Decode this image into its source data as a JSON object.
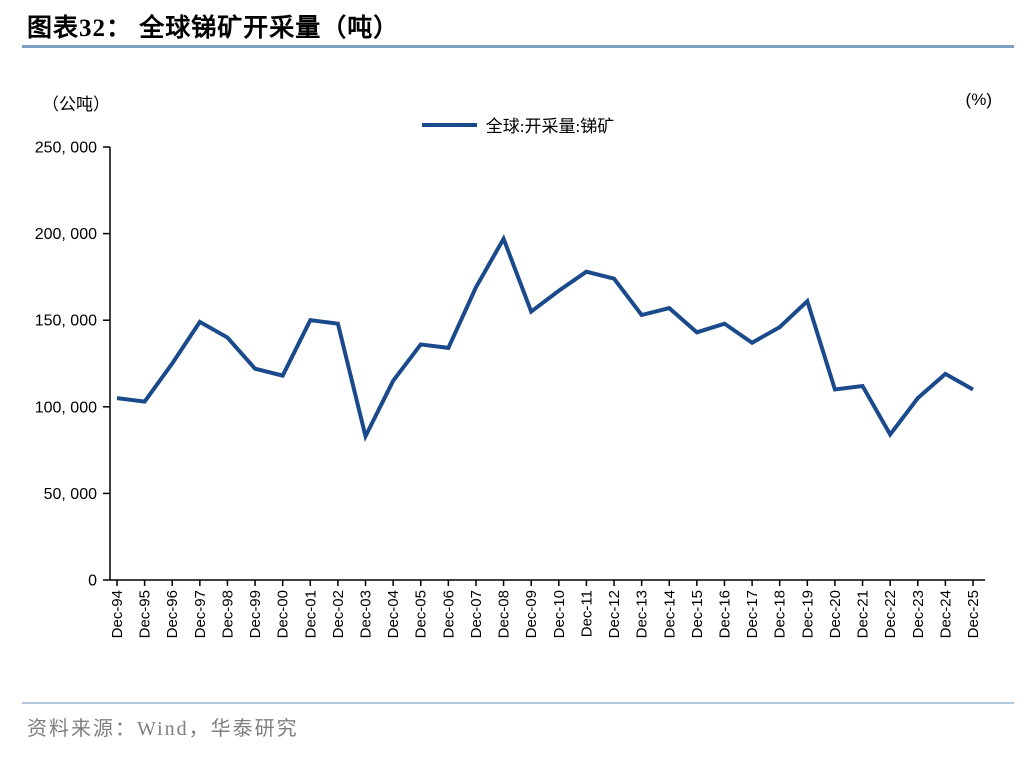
{
  "header": {
    "title": "图表32：  全球锑矿开采量（吨）"
  },
  "footer": {
    "source": "资料来源：Wind，华泰研究"
  },
  "colors": {
    "line": "#1B4A8C",
    "title_rule": "#7CA0C4",
    "footer_rule": "#AFC6DC",
    "axis": "#000000",
    "footer_text": "#7F7F7F"
  },
  "chart_data": {
    "type": "line",
    "title": "全球锑矿开采量（吨）",
    "unit_left": "（公吨）",
    "unit_right": "(%)",
    "legend_position": "top-center",
    "grid": false,
    "categories": [
      "Dec-94",
      "Dec-95",
      "Dec-96",
      "Dec-97",
      "Dec-98",
      "Dec-99",
      "Dec-00",
      "Dec-01",
      "Dec-02",
      "Dec-03",
      "Dec-04",
      "Dec-05",
      "Dec-06",
      "Dec-07",
      "Dec-08",
      "Dec-09",
      "Dec-10",
      "Dec-11",
      "Dec-12",
      "Dec-13",
      "Dec-14",
      "Dec-15",
      "Dec-16",
      "Dec-17",
      "Dec-18",
      "Dec-19",
      "Dec-20",
      "Dec-21",
      "Dec-22",
      "Dec-23",
      "Dec-24",
      "Dec-25"
    ],
    "series": [
      {
        "name": "全球:开采量:锑矿",
        "values": [
          105000,
          103000,
          125000,
          149000,
          140000,
          122000,
          118000,
          150000,
          148000,
          83000,
          115000,
          136000,
          134000,
          169000,
          197000,
          155000,
          167000,
          178000,
          174000,
          153000,
          157000,
          143000,
          148000,
          137000,
          146000,
          161000,
          110000,
          112000,
          84000,
          105000,
          119000,
          110000
        ]
      }
    ],
    "ylim": [
      0,
      250000
    ],
    "y_tick_interval": 50000,
    "y_tick_labels": [
      "0",
      "50, 000",
      "100, 000",
      "150, 000",
      "200, 000",
      "250, 000"
    ]
  }
}
